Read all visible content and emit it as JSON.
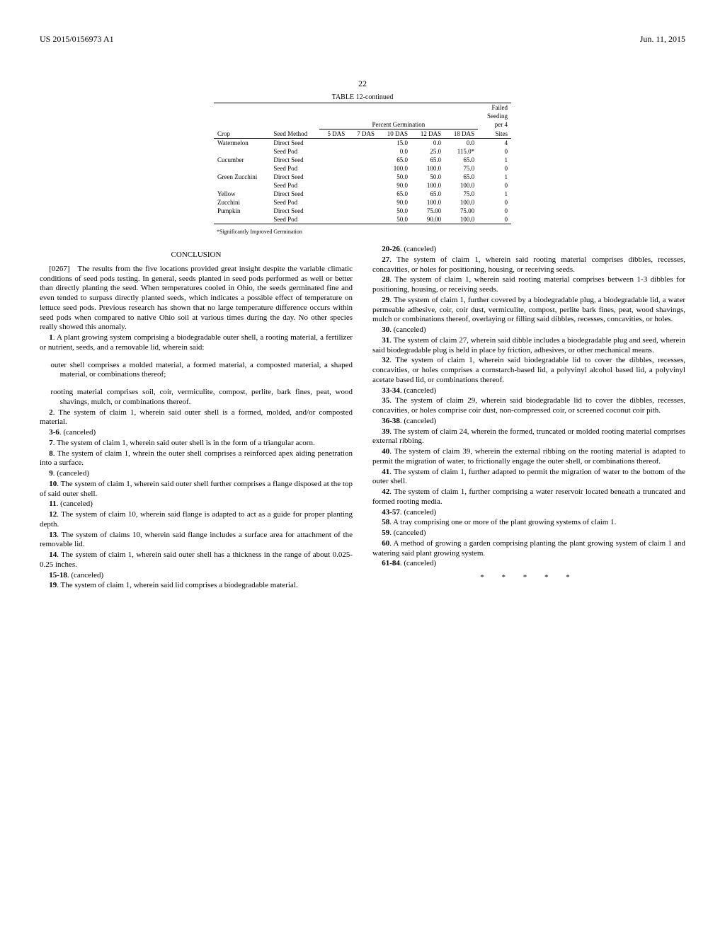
{
  "header": {
    "left": "US 2015/0156973 A1",
    "right": "Jun. 11, 2015"
  },
  "pageNumber": "22",
  "table": {
    "title": "TABLE 12-continued",
    "groupHeader": "Percent Germination",
    "failedHeader1": "Failed",
    "failedHeader2": "Seeding",
    "failedHeader3": "per 4",
    "cols": {
      "crop": "Crop",
      "method": "Seed Method",
      "das5": "5 DAS",
      "das7": "7 DAS",
      "das10": "10 DAS",
      "das12": "12 DAS",
      "das18": "18 DAS",
      "sites": "Sites"
    },
    "rows": [
      {
        "crop": "Watermelon",
        "method": "Direct Seed",
        "d5": "",
        "d7": "",
        "d10": "15.0",
        "d12": "0.0",
        "d18": "0.0",
        "sites": "4"
      },
      {
        "crop": "",
        "method": "Seed Pod",
        "d5": "",
        "d7": "",
        "d10": "0.0",
        "d12": "25.0",
        "d18": "115.0*",
        "sites": "0"
      },
      {
        "crop": "Cucumber",
        "method": "Direct Seed",
        "d5": "",
        "d7": "",
        "d10": "65.0",
        "d12": "65.0",
        "d18": "65.0",
        "sites": "1"
      },
      {
        "crop": "",
        "method": "Seed Pod",
        "d5": "",
        "d7": "",
        "d10": "100.0",
        "d12": "100.0",
        "d18": "75.0",
        "sites": "0"
      },
      {
        "crop": "Green Zucchini",
        "method": "Direct Seed",
        "d5": "",
        "d7": "",
        "d10": "50.0",
        "d12": "50.0",
        "d18": "65.0",
        "sites": "1"
      },
      {
        "crop": "",
        "method": "Seed Pod",
        "d5": "",
        "d7": "",
        "d10": "90.0",
        "d12": "100.0",
        "d18": "100.0",
        "sites": "0"
      },
      {
        "crop": "Yellow",
        "method": "Direct Seed",
        "d5": "",
        "d7": "",
        "d10": "65.0",
        "d12": "65.0",
        "d18": "75.0",
        "sites": "1"
      },
      {
        "crop": "Zucchini",
        "method": "Seed Pod",
        "d5": "",
        "d7": "",
        "d10": "90.0",
        "d12": "100.0",
        "d18": "100.0",
        "sites": "0"
      },
      {
        "crop": "Pumpkin",
        "method": "Direct Seed",
        "d5": "",
        "d7": "",
        "d10": "50.0",
        "d12": "75.00",
        "d18": "75.00",
        "sites": "0"
      },
      {
        "crop": "",
        "method": "Seed Pod",
        "d5": "",
        "d7": "",
        "d10": "50.0",
        "d12": "90.00",
        "d18": "100.0",
        "sites": "0"
      }
    ],
    "footnote": "*Significantly Improved Germination"
  },
  "conclusionTitle": "CONCLUSION",
  "conclusionPara": "[0267] The results from the five locations provided great insight despite the variable climatic conditions of seed pods testing. In general, seeds planted in seed pods performed as well or better than directly planting the seed. When temperatures cooled in Ohio, the seeds germinated fine and even tended to surpass directly planted seeds, which indicates a possible effect of temperature on lettuce seed pods. Previous research has shown that no large temperature difference occurs within seed pods when compared to native Ohio soil at various times during the day. No other species really showed this anomaly.",
  "claims": [
    {
      "n": "1",
      "t": "A plant growing system comprising a biodegradable outer shell, a rooting material, a fertilizer or nutrient, seeds, and a removable lid, wherein said:"
    },
    {
      "sub": true,
      "t": "outer shell comprises a molded material, a formed material, a composted material, a shaped material, or combinations thereof;"
    },
    {
      "sub": true,
      "t": "rooting material comprises soil, coir, vermiculite, compost, perlite, bark fines, peat, wood shavings, mulch, or combinations thereof."
    },
    {
      "n": "2",
      "t": "The system of claim 1, wherein said outer shell is a formed, molded, and/or composted material."
    },
    {
      "n": "3-6",
      "t": "(canceled)"
    },
    {
      "n": "7",
      "t": "The system of claim 1, wherein said outer shell is in the form of a triangular acorn."
    },
    {
      "n": "8",
      "t": "The system of claim 1, whrein the outer shell comprises a reinforced apex aiding penetration into a surface."
    },
    {
      "n": "9",
      "t": "(canceled)"
    },
    {
      "n": "10",
      "t": "The system of claim 1, wherein said outer shell further comprises a flange disposed at the top of said outer shell."
    },
    {
      "n": "11",
      "t": "(canceled)"
    },
    {
      "n": "12",
      "t": "The system of claim 10, wherein said flange is adapted to act as a guide for proper planting depth."
    },
    {
      "n": "13",
      "t": "The system of claims 10, wherein said flange includes a surface area for attachment of the removable lid."
    },
    {
      "n": "14",
      "t": "The system of claim 1, wherein said outer shell has a thickness in the range of about 0.025-0.25 inches."
    },
    {
      "n": "15-18",
      "t": "(canceled)"
    },
    {
      "n": "19",
      "t": "The system of claim 1, wherein said lid comprises a biodegradable material."
    },
    {
      "n": "20-26",
      "t": "(canceled)"
    },
    {
      "n": "27",
      "t": "The system of claim 1, wherein said rooting material comprises dibbles, recesses, concavities, or holes for positioning, housing, or receiving seeds."
    },
    {
      "n": "28",
      "t": "The system of claim 1, wherein said rooting material comprises between 1-3 dibbles for positioning, housing, or receiving seeds."
    },
    {
      "n": "29",
      "t": "The system of claim 1, further covered by a biodegradable plug, a biodegradable lid, a water permeable adhesive, coir, coir dust, vermiculite, compost, perlite bark fines, peat, wood shavings, mulch or combinations thereof, overlaying or filling said dibbles, recesses, concavities, or holes."
    },
    {
      "n": "30",
      "t": "(canceled)"
    },
    {
      "n": "31",
      "t": "The system of claim 27, wherein said dibble includes a biodegradable plug and seed, wherein said biodegradable plug is held in place by friction, adhesives, or other mechanical means."
    },
    {
      "n": "32",
      "t": "The system of claim 1, wherein said biodegradable lid to cover the dibbles, recesses, concavities, or holes comprises a cornstarch-based lid, a polyvinyl alcohol based lid, a polyvinyl acetate based lid, or combinations thereof."
    },
    {
      "n": "33-34",
      "t": "(canceled)"
    },
    {
      "n": "35",
      "t": "The system of claim 29, wherein said biodegradable lid to cover the dibbles, recesses, concavities, or holes comprise coir dust, non-compressed coir, or screened coconut coir pith."
    },
    {
      "n": "36-38",
      "t": "(canceled)"
    },
    {
      "n": "39",
      "t": "The system of claim 24, wherein the formed, truncated or molded rooting material comprises external ribbing."
    },
    {
      "n": "40",
      "t": "The system of claim 39, wherein the external ribbing on the rooting material is adapted to permit the migration of water, to frictionally engage the outer shell, or combinations thereof."
    },
    {
      "n": "41",
      "t": "The system of claim 1, further adapted to permit the migration of water to the bottom of the outer shell."
    },
    {
      "n": "42",
      "t": "The system of claim 1, further comprising a water reservoir located beneath a truncated and formed rooting media."
    },
    {
      "n": "43-57",
      "t": "(canceled)"
    },
    {
      "n": "58",
      "t": "A tray comprising one or more of the plant growing systems of claim 1."
    },
    {
      "n": "59",
      "t": "(canceled)"
    },
    {
      "n": "60",
      "t": "A method of growing a garden comprising planting the plant growing system of claim 1 and watering said plant growing system."
    },
    {
      "n": "61-84",
      "t": "(canceled)"
    }
  ],
  "stars": "* * * * *"
}
